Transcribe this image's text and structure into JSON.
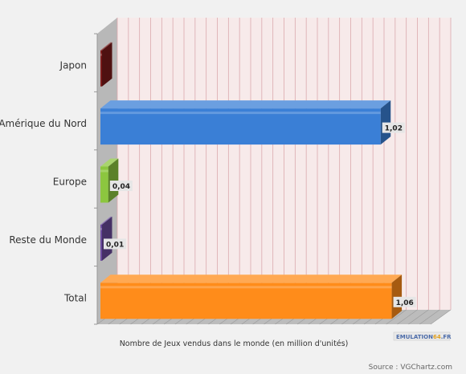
{
  "chart_data": {
    "type": "bar",
    "orientation": "horizontal",
    "categories": [
      "Japon",
      "Amérique du Nord",
      "Europe",
      "Reste du Monde",
      "Total"
    ],
    "values": [
      0,
      1.02,
      0.04,
      0.01,
      1.06
    ],
    "value_labels": [
      "",
      "1,02",
      "0,04",
      "0,01",
      "1,06"
    ],
    "xlabel": "Nombre de Jeux vendus dans le monde (en million d'unités)",
    "xlim": [
      0,
      1.2
    ],
    "grid": "vertical",
    "bar_colors": [
      "#7a1a1a",
      "#3a7fd6",
      "#8cc63f",
      "#6a4a9c",
      "#ff8c1a"
    ]
  },
  "logo": {
    "text_left": "EMULATION",
    "text_mid": "64",
    "text_right": ".FR"
  },
  "source_text": "Source : VGChartz.com"
}
